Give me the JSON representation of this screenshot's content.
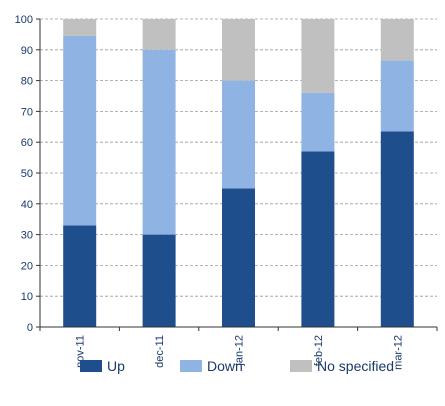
{
  "chart_data": {
    "type": "bar",
    "stacked": true,
    "categories": [
      "nov-11",
      "dec-11",
      "jan-12",
      "feb-12",
      "mar-12"
    ],
    "series": [
      {
        "name": "Up",
        "color": "#1f4e8c",
        "values": [
          33,
          30,
          45,
          57,
          63.5
        ]
      },
      {
        "name": "Down",
        "color": "#8fb3e3",
        "values": [
          61.5,
          60,
          35,
          19,
          23
        ]
      },
      {
        "name": "No specified",
        "color": "#c0c0c0",
        "values": [
          5.5,
          10,
          20,
          24,
          13.5
        ]
      }
    ],
    "yticks": [
      "0",
      "10",
      "20",
      "30",
      "40",
      "50",
      "60",
      "70",
      "80",
      "90",
      "100"
    ],
    "ylim": [
      0,
      100
    ],
    "grid": true,
    "legend_position": "bottom",
    "title": "",
    "xlabel": "",
    "ylabel": ""
  }
}
